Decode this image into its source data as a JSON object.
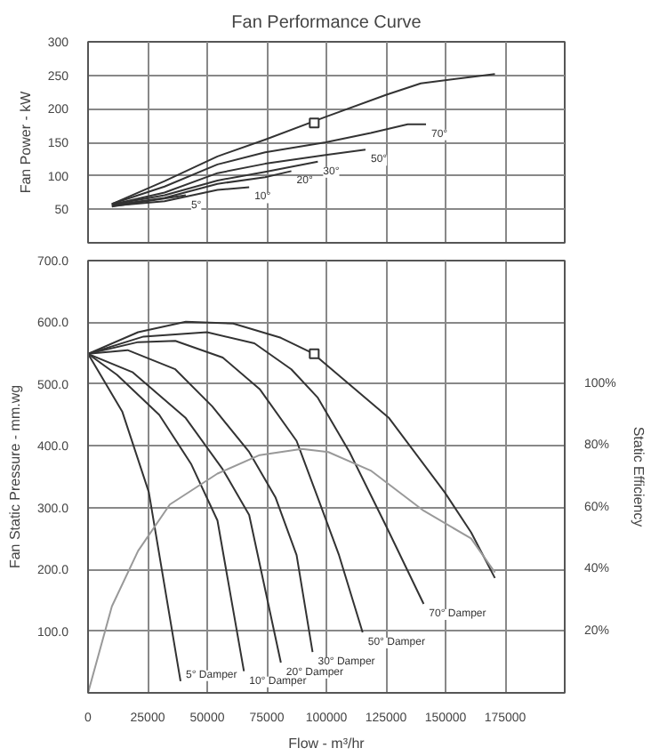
{
  "chart_data": [
    {
      "type": "line",
      "title": "Fan Performance Curve",
      "ylabel": "Fan Power - kW",
      "xlim": [
        0,
        200000
      ],
      "xticks": [
        0,
        25000,
        50000,
        75000,
        100000,
        125000,
        150000,
        175000
      ],
      "ylim": [
        0,
        300
      ],
      "yticks": [
        50,
        100,
        150,
        200,
        250,
        300
      ],
      "tick_labels": "y",
      "grid": true,
      "line_style": "solid",
      "series": [
        {
          "color": "#333333",
          "x": [
            10000,
            32100,
            54300,
            74300,
            99700,
            125200,
            139600,
            170700
          ],
          "values": [
            58,
            92,
            129,
            154,
            188,
            221,
            238,
            252
          ]
        },
        {
          "name": "70°",
          "color": "#333333",
          "x": [
            10000,
            32100,
            54300,
            74300,
            99700,
            118600,
            134100,
            141800
          ],
          "values": [
            58,
            84,
            117,
            135,
            150,
            164,
            177,
            177
          ]
        },
        {
          "name": "50°",
          "color": "#333333",
          "x": [
            10000,
            32100,
            54300,
            74300,
            99700,
            116400
          ],
          "values": [
            57,
            75,
            104,
            118,
            131,
            139
          ]
        },
        {
          "name": "30°",
          "color": "#333333",
          "x": [
            10000,
            32100,
            54300,
            74300,
            96400
          ],
          "values": [
            57,
            71,
            93,
            106,
            121
          ]
        },
        {
          "name": "20°",
          "color": "#333333",
          "x": [
            10000,
            32100,
            54300,
            74300,
            85300
          ],
          "values": [
            56,
            67,
            88,
            98,
            107
          ]
        },
        {
          "name": "10°",
          "color": "#333333",
          "x": [
            10000,
            32100,
            54300,
            67600
          ],
          "values": [
            55,
            62,
            79,
            83
          ]
        },
        {
          "name": "5°",
          "color": "#333333",
          "x": [
            10000,
            41000
          ],
          "values": [
            54,
            71
          ]
        },
        {
          "type": "scatter",
          "marker": "square",
          "color": "#333333",
          "x": [
            94900
          ],
          "values": [
            179
          ]
        }
      ]
    },
    {
      "type": "line",
      "xlabel": "Flow - m³/hr",
      "ylabel": "Fan Static Pressure - mm.wg",
      "y2label": "Static Efficiency",
      "xlim": [
        0,
        200000
      ],
      "xticks": [
        0,
        25000,
        50000,
        75000,
        100000,
        125000,
        150000,
        175000
      ],
      "ylim": [
        0,
        700
      ],
      "yticks": [
        {
          "value": 100,
          "label": "100.0"
        },
        {
          "value": 200,
          "label": "200.0"
        },
        {
          "value": 300,
          "label": "300.0"
        },
        {
          "value": 400,
          "label": "400.0"
        },
        {
          "value": 500,
          "label": "500.0"
        },
        {
          "value": 600,
          "label": "600.0"
        },
        {
          "value": 700,
          "label": "700.0"
        }
      ],
      "y2lim": [
        0,
        140
      ],
      "y2ticks": [
        {
          "value": 20,
          "label": "20%"
        },
        {
          "value": 40,
          "label": "40%"
        },
        {
          "value": 60,
          "label": "60%"
        },
        {
          "value": 80,
          "label": "80%"
        },
        {
          "value": 100,
          "label": "100%"
        }
      ],
      "grid": true,
      "line_style": "solid",
      "series": [
        {
          "color": "#333333",
          "x": [
            0,
            21000,
            41000,
            60900,
            80900,
            94800,
            96400,
            126300,
            149600,
            160700,
            170700
          ],
          "values": [
            549,
            584,
            601,
            598,
            575,
            549,
            543,
            445,
            325,
            260,
            186
          ]
        },
        {
          "name": "70° Damper",
          "color": "#333333",
          "x": [
            0,
            23300,
            49900,
            69800,
            85300,
            96400,
            109700,
            125200,
            140800
          ],
          "values": [
            549,
            577,
            584,
            566,
            524,
            478,
            390,
            269,
            144
          ]
        },
        {
          "name": "50° Damper",
          "color": "#333333",
          "x": [
            0,
            21000,
            36600,
            56500,
            72000,
            87500,
            96400,
            105300,
            115200
          ],
          "values": [
            549,
            568,
            570,
            543,
            492,
            408,
            316,
            223,
            98
          ]
        },
        {
          "name": "30° Damper",
          "color": "#333333",
          "x": [
            0,
            16600,
            36600,
            52100,
            67600,
            78700,
            87500,
            94200
          ],
          "values": [
            549,
            555,
            524,
            464,
            390,
            316,
            223,
            66
          ]
        },
        {
          "name": "20° Damper",
          "color": "#333333",
          "x": [
            0,
            18800,
            41000,
            56500,
            67600,
            80900
          ],
          "values": [
            549,
            519,
            445,
            362,
            288,
            49
          ]
        },
        {
          "name": "10° Damper",
          "color": "#333333",
          "x": [
            0,
            12200,
            29900,
            43200,
            54300,
            65400
          ],
          "values": [
            549,
            515,
            450,
            371,
            279,
            35
          ]
        },
        {
          "name": "5° Damper",
          "color": "#333333",
          "x": [
            0,
            14400,
            25500,
            38800
          ],
          "values": [
            549,
            455,
            325,
            19
          ]
        },
        {
          "axis": "y2",
          "color": "#999999",
          "x": [
            0,
            10000,
            21000,
            34300,
            54300,
            72000,
            89700,
            100800,
            118600,
            140800,
            160700,
            170700
          ],
          "values": [
            0,
            28,
            46,
            61,
            71,
            77,
            79,
            78,
            72,
            59,
            50,
            39
          ]
        },
        {
          "type": "scatter",
          "marker": "square",
          "color": "#333333",
          "x": [
            94900
          ],
          "values": [
            549
          ]
        }
      ]
    }
  ]
}
